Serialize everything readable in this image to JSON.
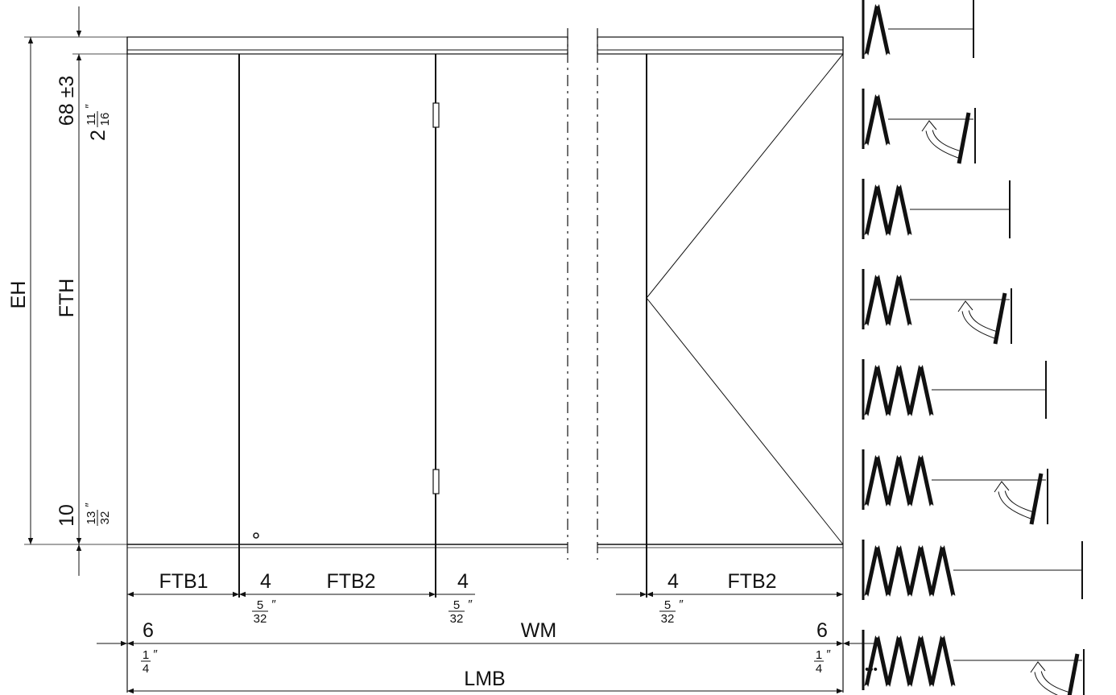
{
  "labels": {
    "eh": "EH",
    "fth": "FTH",
    "top_offset": "68 ±3",
    "top_offset_in_whole": "2",
    "top_offset_in_num": "11",
    "top_offset_in_den": "16",
    "bottom_offset": "10",
    "bottom_offset_in_num": "13",
    "bottom_offset_in_den": "32",
    "inch_mark": "″",
    "ftb1": "FTB1",
    "ftb2_left": "FTB2",
    "ftb2_right": "FTB2",
    "gap1": "4",
    "gap2": "4",
    "gap3": "4",
    "gap_in_num": "5",
    "gap_in_den": "32",
    "edge_left": "6",
    "edge_right": "6",
    "edge_in_num": "1",
    "edge_in_den": "4",
    "wm": "WM",
    "lmb": "LMB",
    "more": "•••"
  },
  "fold_sequence": [
    {
      "panels": 1,
      "turning": false
    },
    {
      "panels": 1,
      "turning": true
    },
    {
      "panels": 2,
      "turning": false
    },
    {
      "panels": 2,
      "turning": true
    },
    {
      "panels": 3,
      "turning": false
    },
    {
      "panels": 3,
      "turning": true
    },
    {
      "panels": 4,
      "turning": false
    },
    {
      "panels": 4,
      "turning": true
    }
  ]
}
